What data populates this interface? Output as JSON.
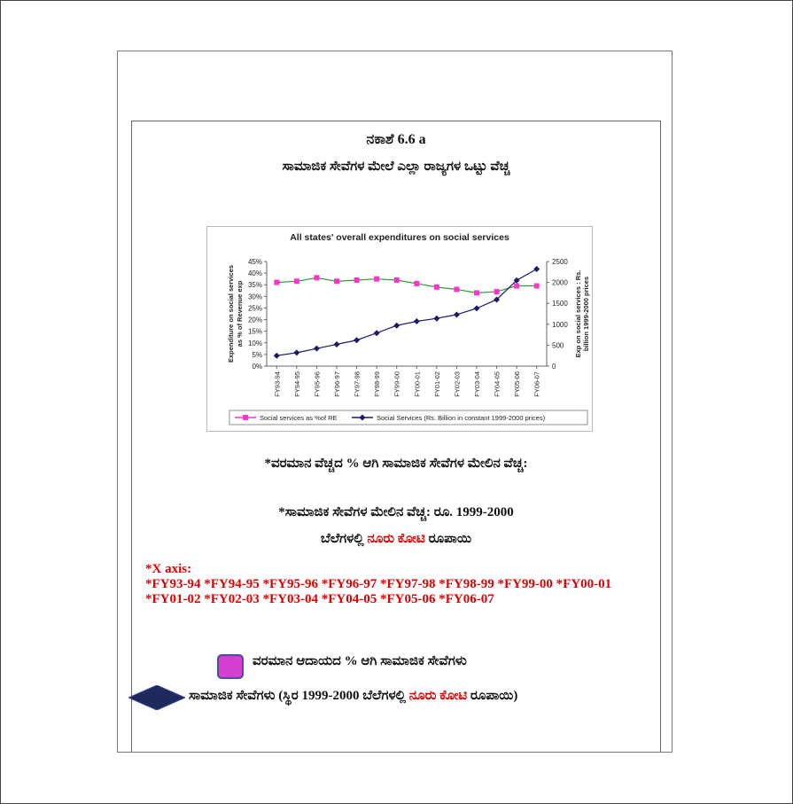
{
  "header": {
    "figure_number": "ನಕಾಶೆ 6.6 a",
    "figure_title": "ಸಾಮಾಜಿಕ ಸೇವೆಗಳ ಮೇಲೆ ಎಲ್ಲಾ ರಾಜ್ಯಗಳ ಒಟ್ಟು ವೆಚ್ಚ"
  },
  "notes": {
    "note1": "*ವರಮಾನ ವೆಚ್ಚದ % ಆಗಿ ಸಾಮಾಜಿಕ ಸೇವೆಗಳ ಮೇಲಿನ ವೆಚ್ಚ:",
    "note2": "*ಸಾಮಾಜಿಕ ಸೇವೆಗಳ ಮೇಲಿನ ವೆಚ್ಚ: ರೂ. 1999-2000",
    "note3_pre": "ಬೆಲೆಗಳಲ್ಲಿ ",
    "note3_red": "ನೂರು ಕೋಟಿ",
    "note3_post": " ರೂಪಾಯಿ",
    "xaxis_heading": "*X axis:",
    "xaxis_list": "*FY93-94  *FY94-95  *FY95-96  *FY96-97  *FY97-98  *FY98-99  *FY99-00  *FY00-01 *FY01-02 *FY02-03  *FY03-04  *FY04-05  *FY05-06  *FY06-07"
  },
  "legend_kn": {
    "item1": "ವರಮಾನ ಆದಾಯದ % ಆಗಿ ಸಾಮಾಜಿಕ ಸೇವೆಗಳು",
    "item2_pre": "ಸಾಮಾಜಿಕ ಸೇವೆಗಳು (ಸ್ಥಿರ 1999-2000 ಬೆಲೆಗಳಲ್ಲಿ ",
    "item2_red": "ನೂರು ಕೋಟಿ",
    "item2_post": " ರೂಪಾಯಿ)"
  },
  "colors": {
    "pink": "#ff33cc",
    "navy": "#1a1a66",
    "green_line": "#339933",
    "red_text": "#e00000"
  },
  "chart_data": {
    "type": "line",
    "title": "All states' overall expenditures on social services",
    "ylabel_left": "Expenditure on social services as % of Revenue exp",
    "ylabel_right": "Exp on social services : Rs. billion 1999-2000 prices",
    "categories": [
      "FY93-94",
      "FY94-95",
      "FY95-96",
      "FY96-97",
      "FY97-98",
      "FY98-99",
      "FY99-00",
      "FY00-01",
      "FY01-02",
      "FY02-03",
      "FY03-04",
      "FY04-05",
      "FY05-06",
      "FY06-07"
    ],
    "ylim_left": [
      0,
      45
    ],
    "yticks_left": [
      "0%",
      "5%",
      "10%",
      "15%",
      "20%",
      "25%",
      "30%",
      "35%",
      "40%",
      "45%"
    ],
    "ylim_right": [
      0,
      2500
    ],
    "yticks_right": [
      "0",
      "500",
      "1000",
      "1500",
      "2000",
      "2500"
    ],
    "series": [
      {
        "name": "Social services as %of RE",
        "axis": "left",
        "color": "#ff33cc",
        "line_color": "#339933",
        "marker": "square",
        "values": [
          36,
          36.5,
          38,
          36.5,
          37,
          37.5,
          37,
          35.5,
          34,
          33,
          31.5,
          32,
          34.5,
          34.5
        ]
      },
      {
        "name": "Social Services (Rs. Billion in constant 1999-2000 prices)",
        "axis": "right",
        "color": "#1a1a66",
        "line_color": "#1a1a66",
        "marker": "diamond",
        "values": [
          250,
          320,
          420,
          520,
          620,
          790,
          970,
          1070,
          1140,
          1230,
          1380,
          1590,
          2050,
          2320
        ]
      }
    ],
    "grid": false,
    "legend_position": "bottom"
  }
}
